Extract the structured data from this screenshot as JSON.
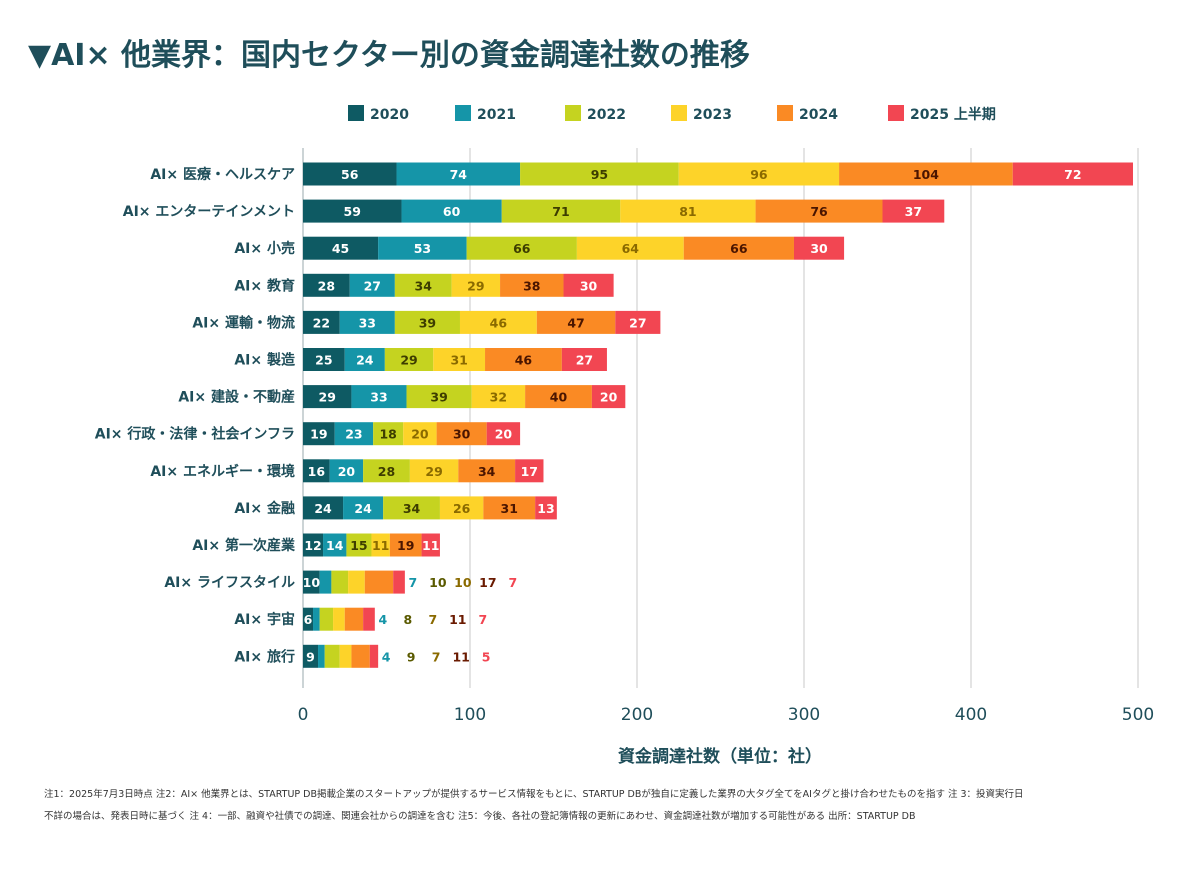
{
  "title": "▼AI× 他業界：国内セクター別の資金調達社数の推移",
  "notes": [
    "注1：2025年7月3日時点 注2：AI× 他業界とは、STARTUP DB掲載企業のスタートアップが提供するサービス情報をもとに、STARTUP DBが独自に定義した業界の大タグ全てをAIタグと掛け合わせたものを指す 注 3：投資実行日",
    "不詳の場合は、発表日時に基づく 注 4：一部、融資や社債での調達、関連会社からの調達を含む 注5：今後、各社の登記簿情報の更新にあわせ、資金調達社数が増加する可能性がある 出所：STARTUP DB"
  ],
  "chart_data": {
    "type": "bar",
    "orientation": "horizontal",
    "stacked": true,
    "categories": [
      "AI× 医療・ヘルスケア",
      "AI× エンターテインメント",
      "AI× 小売",
      "AI× 教育",
      "AI× 運輸・物流",
      "AI× 製造",
      "AI× 建設・不動産",
      "AI× 行政・法律・社会インフラ",
      "AI× エネルギー・環境",
      "AI× 金融",
      "AI× 第一次産業",
      "AI× ライフスタイル",
      "AI× 宇宙",
      "AI× 旅行"
    ],
    "series": [
      {
        "name": "2020",
        "color": "#0e5a63",
        "label_color": "#ffffff",
        "values": [
          56,
          59,
          45,
          28,
          22,
          25,
          29,
          19,
          16,
          24,
          12,
          10,
          6,
          9
        ]
      },
      {
        "name": "2021",
        "color": "#1595a8",
        "label_color": "#ffffff",
        "values": [
          74,
          60,
          53,
          27,
          33,
          24,
          33,
          23,
          20,
          24,
          14,
          7,
          4,
          4
        ]
      },
      {
        "name": "2022",
        "color": "#c5d320",
        "label_color": "#3d3d00",
        "values": [
          95,
          71,
          66,
          34,
          39,
          29,
          39,
          18,
          28,
          34,
          15,
          10,
          8,
          9
        ]
      },
      {
        "name": "2023",
        "color": "#fdd329",
        "label_color": "#8a6a00",
        "values": [
          96,
          81,
          64,
          29,
          46,
          31,
          32,
          20,
          29,
          26,
          11,
          10,
          7,
          7
        ]
      },
      {
        "name": "2024",
        "color": "#fa8a24",
        "label_color": "#4a1500",
        "values": [
          104,
          76,
          66,
          38,
          47,
          46,
          40,
          30,
          34,
          31,
          19,
          17,
          11,
          11
        ]
      },
      {
        "name": "2025 上半期",
        "color": "#f24652",
        "label_color": "#ffffff",
        "values": [
          72,
          37,
          30,
          30,
          27,
          27,
          20,
          20,
          17,
          13,
          11,
          7,
          7,
          5
        ]
      }
    ],
    "outside_label_colors": [
      "#0e5a63",
      "#1595a8",
      "#5a5a00",
      "#8a6a00",
      "#6a1a00",
      "#f24652"
    ],
    "x_ticks": [
      0,
      100,
      200,
      300,
      400,
      500
    ],
    "xlim": [
      0,
      500
    ],
    "xlabel": "資金調達社数（単位：社）",
    "ylabel": "",
    "grid": true,
    "legend_position": "top"
  }
}
